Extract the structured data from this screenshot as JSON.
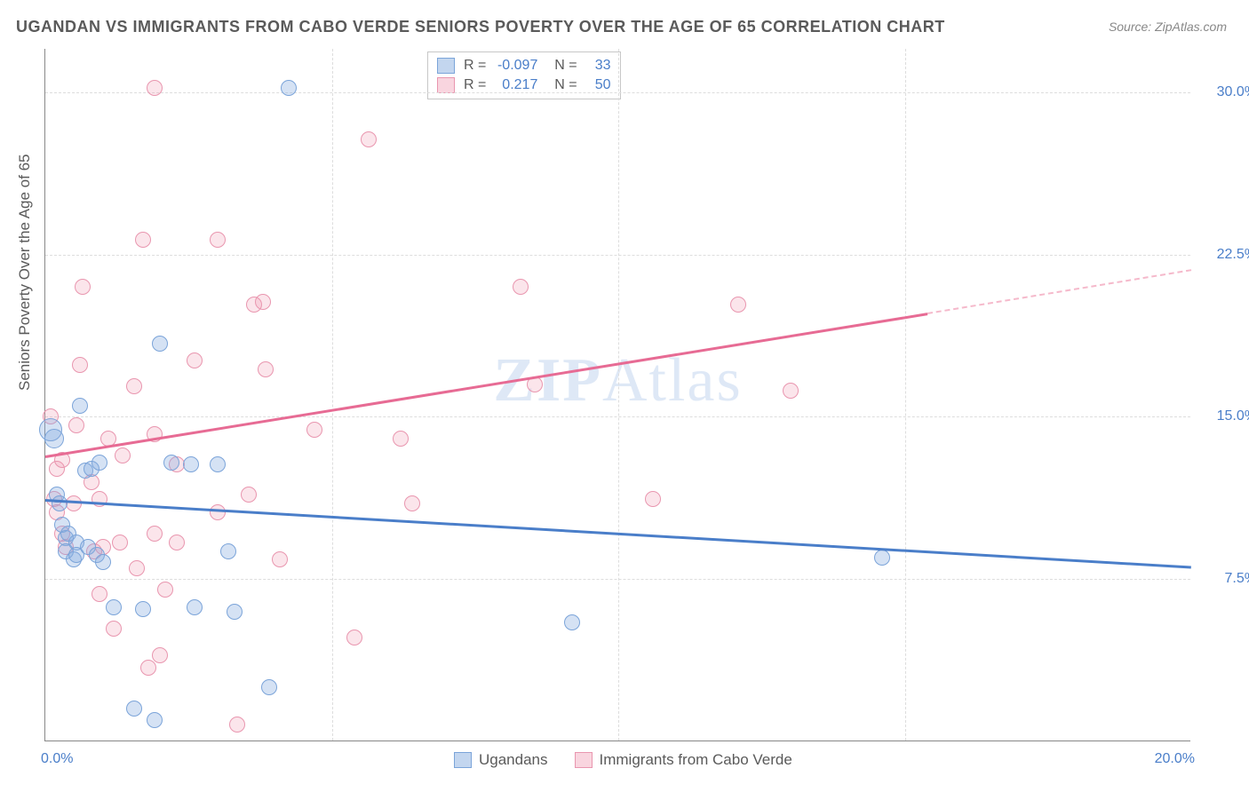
{
  "title": "UGANDAN VS IMMIGRANTS FROM CABO VERDE SENIORS POVERTY OVER THE AGE OF 65 CORRELATION CHART",
  "source": "Source: ZipAtlas.com",
  "y_axis_title": "Seniors Poverty Over the Age of 65",
  "watermark": "ZIPAtlas",
  "chart": {
    "type": "scatter",
    "xlim": [
      0,
      20
    ],
    "ylim": [
      0,
      32
    ],
    "x_ticks": [
      {
        "v": 0,
        "label": "0.0%"
      },
      {
        "v": 20,
        "label": "20.0%"
      }
    ],
    "y_ticks": [
      {
        "v": 7.5,
        "label": "7.5%"
      },
      {
        "v": 15.0,
        "label": "15.0%"
      },
      {
        "v": 22.5,
        "label": "22.5%"
      },
      {
        "v": 30.0,
        "label": "30.0%"
      }
    ],
    "x_grid_at": [
      5,
      10,
      15
    ],
    "background_color": "#ffffff",
    "grid_color": "#dddddd",
    "axis_color": "#888888",
    "label_color": "#4a7ec9",
    "title_color": "#5a5a5a"
  },
  "series": {
    "blue": {
      "label": "Ugandans",
      "fill": "rgba(135,173,224,0.35)",
      "stroke": "#7ba4d9",
      "trend_color": "#4a7ec9",
      "R": "-0.097",
      "N": "33",
      "trend": {
        "x1": 0,
        "y1": 11.2,
        "x2": 20,
        "y2": 8.1
      },
      "points": [
        {
          "x": 0.1,
          "y": 14.4,
          "r": 13
        },
        {
          "x": 0.15,
          "y": 14.0,
          "r": 11
        },
        {
          "x": 0.2,
          "y": 11.4,
          "r": 9
        },
        {
          "x": 0.25,
          "y": 11.0,
          "r": 9
        },
        {
          "x": 0.3,
          "y": 10.0,
          "r": 9
        },
        {
          "x": 0.35,
          "y": 9.4,
          "r": 9
        },
        {
          "x": 0.35,
          "y": 8.8,
          "r": 9
        },
        {
          "x": 0.4,
          "y": 9.6,
          "r": 9
        },
        {
          "x": 0.5,
          "y": 8.4,
          "r": 9
        },
        {
          "x": 0.55,
          "y": 9.2,
          "r": 9
        },
        {
          "x": 0.55,
          "y": 8.6,
          "r": 9
        },
        {
          "x": 0.6,
          "y": 15.5,
          "r": 9
        },
        {
          "x": 0.7,
          "y": 12.5,
          "r": 9
        },
        {
          "x": 0.75,
          "y": 9.0,
          "r": 9
        },
        {
          "x": 0.8,
          "y": 12.6,
          "r": 9
        },
        {
          "x": 0.9,
          "y": 8.6,
          "r": 9
        },
        {
          "x": 0.95,
          "y": 12.9,
          "r": 9
        },
        {
          "x": 1.0,
          "y": 8.3,
          "r": 9
        },
        {
          "x": 1.2,
          "y": 6.2,
          "r": 9
        },
        {
          "x": 1.55,
          "y": 1.5,
          "r": 9
        },
        {
          "x": 1.7,
          "y": 6.1,
          "r": 9
        },
        {
          "x": 1.9,
          "y": 1.0,
          "r": 9
        },
        {
          "x": 2.0,
          "y": 18.4,
          "r": 9
        },
        {
          "x": 2.2,
          "y": 12.9,
          "r": 9
        },
        {
          "x": 2.55,
          "y": 12.8,
          "r": 9
        },
        {
          "x": 2.6,
          "y": 6.2,
          "r": 9
        },
        {
          "x": 3.0,
          "y": 12.8,
          "r": 9
        },
        {
          "x": 3.2,
          "y": 8.8,
          "r": 9
        },
        {
          "x": 3.9,
          "y": 2.5,
          "r": 9
        },
        {
          "x": 4.25,
          "y": 30.2,
          "r": 9
        },
        {
          "x": 3.3,
          "y": 6.0,
          "r": 9
        },
        {
          "x": 9.2,
          "y": 5.5,
          "r": 9
        },
        {
          "x": 14.6,
          "y": 8.5,
          "r": 9
        }
      ]
    },
    "pink": {
      "label": "Immigrants from Cabo Verde",
      "fill": "rgba(240,150,175,0.25)",
      "stroke": "#e996af",
      "trend_color": "#e76b94",
      "R": "0.217",
      "N": "50",
      "trend": {
        "x1": 0,
        "y1": 13.2,
        "x2": 15.4,
        "y2": 19.8
      },
      "trend_dashed": {
        "x1": 15.4,
        "y1": 19.8,
        "x2": 20,
        "y2": 21.8
      },
      "points": [
        {
          "x": 0.1,
          "y": 15.0,
          "r": 9
        },
        {
          "x": 0.15,
          "y": 11.2,
          "r": 9
        },
        {
          "x": 0.2,
          "y": 12.6,
          "r": 9
        },
        {
          "x": 0.2,
          "y": 10.6,
          "r": 9
        },
        {
          "x": 0.3,
          "y": 13.0,
          "r": 9
        },
        {
          "x": 0.3,
          "y": 9.6,
          "r": 9
        },
        {
          "x": 0.35,
          "y": 9.0,
          "r": 9
        },
        {
          "x": 0.5,
          "y": 11.0,
          "r": 9
        },
        {
          "x": 0.55,
          "y": 14.6,
          "r": 9
        },
        {
          "x": 0.6,
          "y": 17.4,
          "r": 9
        },
        {
          "x": 0.65,
          "y": 21.0,
          "r": 9
        },
        {
          "x": 0.8,
          "y": 12.0,
          "r": 9
        },
        {
          "x": 0.85,
          "y": 8.8,
          "r": 9
        },
        {
          "x": 0.95,
          "y": 6.8,
          "r": 9
        },
        {
          "x": 0.95,
          "y": 11.2,
          "r": 9
        },
        {
          "x": 1.0,
          "y": 9.0,
          "r": 9
        },
        {
          "x": 1.1,
          "y": 14.0,
          "r": 9
        },
        {
          "x": 1.2,
          "y": 5.2,
          "r": 9
        },
        {
          "x": 1.3,
          "y": 9.2,
          "r": 9
        },
        {
          "x": 1.35,
          "y": 13.2,
          "r": 9
        },
        {
          "x": 1.55,
          "y": 16.4,
          "r": 9
        },
        {
          "x": 1.6,
          "y": 8.0,
          "r": 9
        },
        {
          "x": 1.7,
          "y": 23.2,
          "r": 9
        },
        {
          "x": 1.8,
          "y": 3.4,
          "r": 9
        },
        {
          "x": 1.9,
          "y": 9.6,
          "r": 9
        },
        {
          "x": 1.9,
          "y": 14.2,
          "r": 9
        },
        {
          "x": 1.9,
          "y": 30.2,
          "r": 9
        },
        {
          "x": 2.0,
          "y": 4.0,
          "r": 9
        },
        {
          "x": 2.1,
          "y": 7.0,
          "r": 9
        },
        {
          "x": 2.3,
          "y": 12.8,
          "r": 9
        },
        {
          "x": 2.3,
          "y": 9.2,
          "r": 9
        },
        {
          "x": 2.6,
          "y": 17.6,
          "r": 9
        },
        {
          "x": 3.0,
          "y": 10.6,
          "r": 9
        },
        {
          "x": 3.0,
          "y": 23.2,
          "r": 9
        },
        {
          "x": 3.35,
          "y": 0.8,
          "r": 9
        },
        {
          "x": 3.55,
          "y": 11.4,
          "r": 9
        },
        {
          "x": 3.65,
          "y": 20.2,
          "r": 9
        },
        {
          "x": 3.8,
          "y": 20.3,
          "r": 9
        },
        {
          "x": 3.85,
          "y": 17.2,
          "r": 9
        },
        {
          "x": 4.7,
          "y": 14.4,
          "r": 9
        },
        {
          "x": 5.4,
          "y": 4.8,
          "r": 9
        },
        {
          "x": 5.65,
          "y": 27.8,
          "r": 9
        },
        {
          "x": 6.2,
          "y": 14.0,
          "r": 9
        },
        {
          "x": 6.4,
          "y": 11.0,
          "r": 9
        },
        {
          "x": 8.3,
          "y": 21.0,
          "r": 9
        },
        {
          "x": 8.55,
          "y": 16.5,
          "r": 9
        },
        {
          "x": 10.6,
          "y": 11.2,
          "r": 9
        },
        {
          "x": 12.1,
          "y": 20.2,
          "r": 9
        },
        {
          "x": 13.0,
          "y": 16.2,
          "r": 9
        },
        {
          "x": 4.1,
          "y": 8.4,
          "r": 9
        }
      ]
    }
  }
}
